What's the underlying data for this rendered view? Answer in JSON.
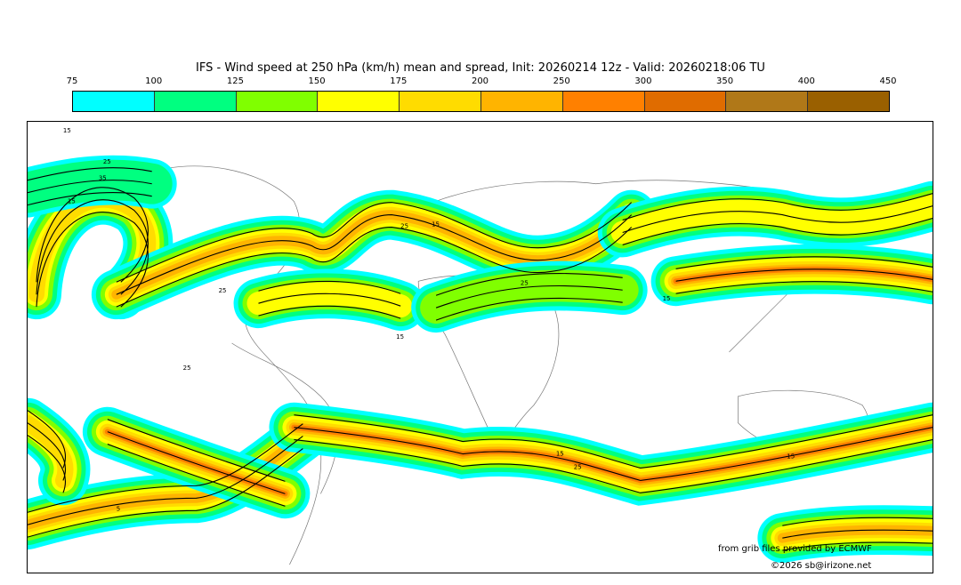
{
  "title": "IFS - Wind speed at 250 hPa (km/h) mean and spread, Init: 20260214 12z - Valid: 20260218:06 TU",
  "colorbar": {
    "ticks": [
      "75",
      "100",
      "125",
      "150",
      "175",
      "200",
      "250",
      "300",
      "350",
      "400",
      "450"
    ],
    "colors": [
      "#00ffff",
      "#00ff80",
      "#80ff00",
      "#ffff00",
      "#ffdc00",
      "#ffb400",
      "#ff8000",
      "#e06c00",
      "#b07818",
      "#9a6000"
    ]
  },
  "contour_labels": [
    "15",
    "25",
    "35",
    "15",
    "25",
    "15",
    "25",
    "15",
    "25",
    "15",
    "25",
    "15",
    "25",
    "15",
    "5"
  ],
  "credits": {
    "source": "from grib files provided by ECMWF",
    "copyright": "©2026 sb@irizone.net"
  }
}
